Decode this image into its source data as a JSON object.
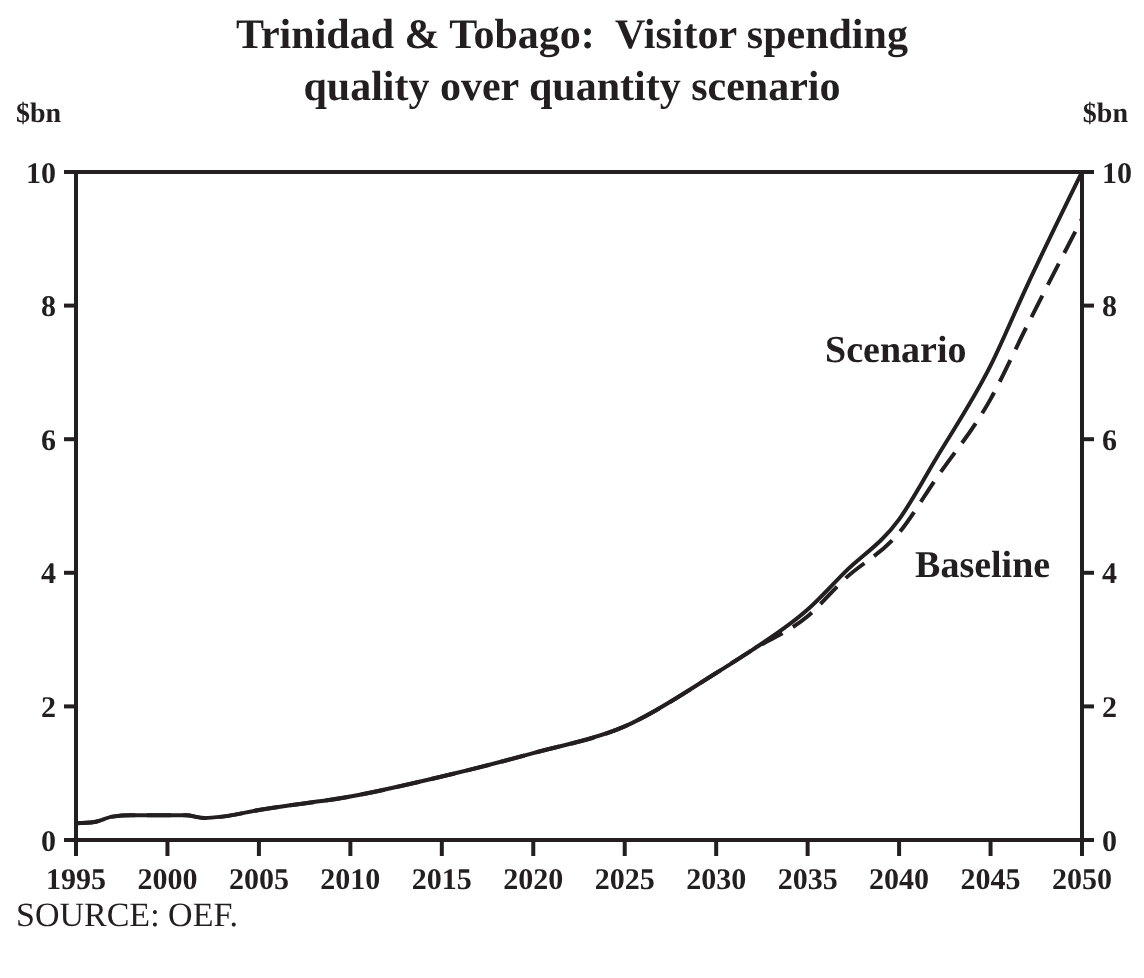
{
  "chart_data": {
    "type": "line",
    "title": "Trinidad & Tobago:  Visitor spending quality over quantity scenario",
    "ylabel": "$bn",
    "y2label": "$bn",
    "annotations": [
      "SOURCE: OEF."
    ],
    "x": [
      1995,
      1996,
      1997,
      1998,
      2000,
      2001,
      2002,
      2003,
      2005,
      2010,
      2015,
      2020,
      2025,
      2030,
      2032,
      2035,
      2037,
      2040,
      2042,
      2045,
      2047,
      2050
    ],
    "series": [
      {
        "name": "Scenario",
        "color": "#231f20",
        "line_style": "solid",
        "values": [
          0.25,
          0.27,
          0.35,
          0.37,
          0.37,
          0.37,
          0.33,
          0.35,
          0.45,
          0.65,
          0.95,
          1.3,
          1.7,
          2.5,
          2.85,
          3.45,
          4.0,
          4.8,
          5.7,
          7.1,
          8.3,
          10
        ]
      },
      {
        "name": "Baseline",
        "color": "#231f20",
        "line_style": "dashed",
        "values": [
          0.25,
          0.27,
          0.35,
          0.37,
          0.37,
          0.37,
          0.33,
          0.35,
          0.45,
          0.65,
          0.95,
          1.3,
          1.7,
          2.5,
          2.85,
          3.35,
          3.9,
          4.6,
          5.4,
          6.6,
          7.7,
          9.3
        ]
      }
    ],
    "xlim": [
      1995,
      2050
    ],
    "xticks": [
      1995,
      2000,
      2005,
      2010,
      2015,
      2020,
      2025,
      2030,
      2035,
      2040,
      2045,
      2050
    ],
    "ylim": [
      0,
      10
    ],
    "yticks": [
      0,
      2,
      4,
      6,
      8,
      10
    ],
    "y2lim": [
      0,
      10
    ],
    "y2ticks": [
      0,
      2,
      4,
      6,
      8,
      10
    ],
    "grid": false,
    "legend": false,
    "marker": "none"
  }
}
